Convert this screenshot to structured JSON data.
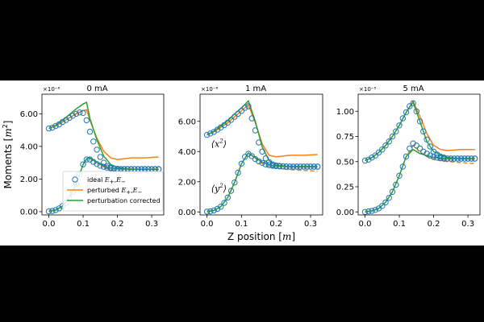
{
  "figure": {
    "ylabel_main": "Moments [",
    "ylabel_unit": "m",
    "ylabel_exp": "2",
    "ylabel_close": "]",
    "xlabel_main": "Z position [",
    "xlabel_unit": "m",
    "xlabel_close": "]"
  },
  "legend": {
    "ideal_label": "ideal E+,E−",
    "perturbed_label": "perturbed E+,E−",
    "corrected_label": "perturbation corrected"
  },
  "colors": {
    "ideal": "#1f77b4",
    "perturbed": "#ff7f0e",
    "corrected": "#2ca02c"
  },
  "chart_data": [
    {
      "type": "line",
      "title": "0 mA",
      "multiplier": "×10⁻⁶",
      "xlim": [
        -0.02,
        0.335
      ],
      "ylim": [
        -0.2,
        7.2
      ],
      "xticks": [
        0.0,
        0.1,
        0.2,
        0.3
      ],
      "xtick_labels": [
        "0.0",
        "0.1",
        "0.2",
        "0.3"
      ],
      "yticks": [
        0,
        2,
        4,
        6
      ],
      "ytick_labels": [
        "0.00",
        "2.00",
        "4.00",
        "6.00"
      ],
      "annotations": [],
      "series": [
        {
          "key": "ideal_x",
          "style": "markers",
          "x": [
            0,
            0.01,
            0.02,
            0.03,
            0.04,
            0.05,
            0.06,
            0.07,
            0.08,
            0.09,
            0.1,
            0.11,
            0.12,
            0.13,
            0.14,
            0.15,
            0.16,
            0.17,
            0.18,
            0.19,
            0.2,
            0.21,
            0.22,
            0.23,
            0.24,
            0.25,
            0.26,
            0.27,
            0.28,
            0.29,
            0.3,
            0.31,
            0.32
          ],
          "y": [
            5.1,
            5.15,
            5.25,
            5.35,
            5.5,
            5.62,
            5.75,
            5.88,
            6.0,
            6.08,
            6.05,
            5.6,
            4.9,
            4.3,
            3.8,
            3.35,
            3.0,
            2.8,
            2.7,
            2.65,
            2.62,
            2.6,
            2.6,
            2.6,
            2.6,
            2.6,
            2.6,
            2.6,
            2.6,
            2.6,
            2.6,
            2.6,
            2.6
          ]
        },
        {
          "key": "ideal_y",
          "style": "markers",
          "x": [
            0,
            0.01,
            0.02,
            0.03,
            0.04,
            0.05,
            0.06,
            0.07,
            0.08,
            0.09,
            0.1,
            0.11,
            0.12,
            0.13,
            0.14,
            0.15,
            0.16,
            0.17,
            0.18,
            0.19,
            0.2,
            0.21,
            0.22,
            0.23,
            0.24,
            0.25,
            0.26,
            0.27,
            0.28,
            0.29,
            0.3,
            0.31,
            0.32
          ],
          "y": [
            0.02,
            0.04,
            0.1,
            0.2,
            0.35,
            0.55,
            0.85,
            1.2,
            1.7,
            2.3,
            2.9,
            3.2,
            3.2,
            3.05,
            2.92,
            2.82,
            2.75,
            2.7,
            2.66,
            2.63,
            2.62,
            2.61,
            2.61,
            2.61,
            2.61,
            2.61,
            2.61,
            2.61,
            2.61,
            2.61,
            2.61,
            2.61,
            2.61
          ]
        },
        {
          "key": "perturbed_x",
          "style": "solid",
          "x": [
            0,
            0.02,
            0.04,
            0.06,
            0.08,
            0.1,
            0.11,
            0.12,
            0.14,
            0.16,
            0.18,
            0.2,
            0.22,
            0.24,
            0.28,
            0.32
          ],
          "y": [
            5.1,
            5.25,
            5.5,
            5.75,
            6.0,
            6.2,
            6.25,
            5.6,
            4.5,
            3.7,
            3.3,
            3.2,
            3.25,
            3.3,
            3.3,
            3.35
          ]
        },
        {
          "key": "perturbed_y",
          "style": "dashed",
          "x": [
            0,
            0.02,
            0.04,
            0.06,
            0.08,
            0.1,
            0.11,
            0.12,
            0.14,
            0.16,
            0.18,
            0.2,
            0.24,
            0.28,
            0.32
          ],
          "y": [
            0.02,
            0.1,
            0.35,
            0.85,
            1.7,
            2.9,
            3.2,
            3.25,
            3.0,
            2.75,
            2.6,
            2.5,
            2.45,
            2.4,
            2.3
          ]
        },
        {
          "key": "corrected_x",
          "style": "solid",
          "x": [
            0,
            0.02,
            0.04,
            0.06,
            0.08,
            0.1,
            0.11,
            0.12,
            0.14,
            0.16,
            0.18,
            0.2,
            0.24,
            0.28,
            0.32
          ],
          "y": [
            5.1,
            5.3,
            5.6,
            5.95,
            6.3,
            6.6,
            6.7,
            5.7,
            4.4,
            3.4,
            2.9,
            2.7,
            2.6,
            2.6,
            2.6
          ]
        },
        {
          "key": "corrected_y",
          "style": "solid",
          "x": [
            0,
            0.02,
            0.04,
            0.06,
            0.08,
            0.1,
            0.11,
            0.12,
            0.14,
            0.16,
            0.18,
            0.2,
            0.24,
            0.28,
            0.32
          ],
          "y": [
            0.02,
            0.1,
            0.35,
            0.85,
            1.7,
            2.9,
            3.25,
            3.3,
            3.0,
            2.8,
            2.68,
            2.62,
            2.6,
            2.6,
            2.6
          ]
        }
      ]
    },
    {
      "type": "line",
      "title": "1 mA",
      "multiplier": "×10⁻⁶",
      "xlim": [
        -0.02,
        0.335
      ],
      "ylim": [
        -0.2,
        7.8
      ],
      "xticks": [
        0.0,
        0.1,
        0.2,
        0.3
      ],
      "xtick_labels": [
        "0.0",
        "0.1",
        "0.2",
        "0.3"
      ],
      "yticks": [
        0,
        2,
        4,
        6
      ],
      "ytick_labels": [
        "0.00",
        "2.00",
        "4.00",
        "6.00"
      ],
      "annotations": [
        {
          "base": "⟨x",
          "exp": "2",
          "close": "⟩",
          "x": 0.012,
          "y": 4.3
        },
        {
          "base": "⟨y",
          "exp": "2",
          "close": "⟩",
          "x": 0.012,
          "y": 1.35
        }
      ],
      "series": [
        {
          "key": "ideal_x",
          "style": "markers",
          "x": [
            0,
            0.01,
            0.02,
            0.03,
            0.04,
            0.05,
            0.06,
            0.07,
            0.08,
            0.09,
            0.1,
            0.11,
            0.12,
            0.13,
            0.14,
            0.15,
            0.16,
            0.17,
            0.18,
            0.19,
            0.2,
            0.21,
            0.22,
            0.23,
            0.24,
            0.25,
            0.26,
            0.27,
            0.28,
            0.29,
            0.3,
            0.31,
            0.32
          ],
          "y": [
            5.1,
            5.2,
            5.3,
            5.45,
            5.6,
            5.75,
            5.92,
            6.1,
            6.3,
            6.5,
            6.7,
            6.9,
            7.0,
            6.2,
            5.4,
            4.6,
            4.0,
            3.55,
            3.3,
            3.15,
            3.08,
            3.05,
            3.02,
            3.01,
            3.0,
            3.0,
            3.0,
            3.0,
            3.0,
            3.0,
            3.0,
            3.0,
            3.0
          ]
        },
        {
          "key": "ideal_y",
          "style": "markers",
          "x": [
            0,
            0.01,
            0.02,
            0.03,
            0.04,
            0.05,
            0.06,
            0.07,
            0.08,
            0.09,
            0.1,
            0.11,
            0.12,
            0.13,
            0.14,
            0.15,
            0.16,
            0.17,
            0.18,
            0.19,
            0.2,
            0.21,
            0.22,
            0.23,
            0.24,
            0.25,
            0.26,
            0.27,
            0.28,
            0.29,
            0.3,
            0.31,
            0.32
          ],
          "y": [
            0.02,
            0.04,
            0.1,
            0.2,
            0.35,
            0.6,
            0.95,
            1.4,
            1.95,
            2.6,
            3.2,
            3.65,
            3.85,
            3.7,
            3.5,
            3.35,
            3.25,
            3.15,
            3.1,
            3.06,
            3.04,
            3.02,
            3.01,
            3.0,
            3.0,
            3.0,
            3.0,
            3.0,
            3.0,
            3.0,
            3.0,
            3.0,
            3.0
          ]
        },
        {
          "key": "perturbed_x",
          "style": "solid",
          "x": [
            0,
            0.02,
            0.04,
            0.06,
            0.08,
            0.1,
            0.12,
            0.14,
            0.16,
            0.18,
            0.2,
            0.22,
            0.24,
            0.28,
            0.32
          ],
          "y": [
            5.1,
            5.3,
            5.6,
            5.9,
            6.3,
            6.7,
            7.1,
            5.9,
            4.5,
            3.75,
            3.65,
            3.7,
            3.75,
            3.75,
            3.8
          ]
        },
        {
          "key": "perturbed_y",
          "style": "dashed",
          "x": [
            0,
            0.02,
            0.04,
            0.06,
            0.08,
            0.1,
            0.12,
            0.14,
            0.16,
            0.18,
            0.2,
            0.24,
            0.28,
            0.32
          ],
          "y": [
            0.02,
            0.1,
            0.35,
            0.95,
            1.95,
            3.2,
            3.9,
            3.55,
            3.2,
            3.0,
            2.9,
            2.8,
            2.75,
            2.7
          ]
        },
        {
          "key": "corrected_x",
          "style": "solid",
          "x": [
            0,
            0.02,
            0.04,
            0.06,
            0.08,
            0.1,
            0.12,
            0.14,
            0.16,
            0.18,
            0.2,
            0.24,
            0.28,
            0.32
          ],
          "y": [
            5.1,
            5.35,
            5.7,
            6.05,
            6.5,
            6.9,
            7.35,
            6.0,
            4.3,
            3.4,
            3.1,
            3.0,
            3.0,
            3.0
          ]
        },
        {
          "key": "corrected_y",
          "style": "solid",
          "x": [
            0,
            0.02,
            0.04,
            0.06,
            0.08,
            0.1,
            0.12,
            0.14,
            0.16,
            0.18,
            0.2,
            0.24,
            0.28,
            0.32
          ],
          "y": [
            0.02,
            0.1,
            0.35,
            0.95,
            1.95,
            3.2,
            3.9,
            3.6,
            3.3,
            3.12,
            3.05,
            3.0,
            3.0,
            3.0
          ]
        }
      ]
    },
    {
      "type": "line",
      "title": "5 mA",
      "multiplier": "×10⁻⁵",
      "xlim": [
        -0.02,
        0.335
      ],
      "ylim": [
        -0.03,
        1.17
      ],
      "xticks": [
        0.0,
        0.1,
        0.2,
        0.3
      ],
      "xtick_labels": [
        "0.0",
        "0.1",
        "0.2",
        "0.3"
      ],
      "yticks": [
        0,
        0.25,
        0.5,
        0.75,
        1.0
      ],
      "ytick_labels": [
        "0.00",
        "0.25",
        "0.50",
        "0.75",
        "1.00"
      ],
      "annotations": [],
      "series": [
        {
          "key": "ideal_x",
          "style": "markers",
          "x": [
            0,
            0.01,
            0.02,
            0.03,
            0.04,
            0.05,
            0.06,
            0.07,
            0.08,
            0.09,
            0.1,
            0.11,
            0.12,
            0.13,
            0.14,
            0.15,
            0.16,
            0.17,
            0.18,
            0.19,
            0.2,
            0.21,
            0.22,
            0.23,
            0.24,
            0.25,
            0.26,
            0.27,
            0.28,
            0.29,
            0.3,
            0.31,
            0.32
          ],
          "y": [
            0.51,
            0.52,
            0.54,
            0.56,
            0.59,
            0.62,
            0.66,
            0.7,
            0.75,
            0.8,
            0.86,
            0.93,
            0.99,
            1.05,
            1.08,
            1.0,
            0.9,
            0.8,
            0.72,
            0.65,
            0.6,
            0.57,
            0.55,
            0.54,
            0.53,
            0.53,
            0.53,
            0.53,
            0.53,
            0.53,
            0.53,
            0.53,
            0.53
          ]
        },
        {
          "key": "ideal_y",
          "style": "markers",
          "x": [
            0,
            0.01,
            0.02,
            0.03,
            0.04,
            0.05,
            0.06,
            0.07,
            0.08,
            0.09,
            0.1,
            0.11,
            0.12,
            0.13,
            0.14,
            0.15,
            0.16,
            0.17,
            0.18,
            0.19,
            0.2,
            0.21,
            0.22,
            0.23,
            0.24,
            0.25,
            0.26,
            0.27,
            0.28,
            0.29,
            0.3,
            0.31,
            0.32
          ],
          "y": [
            0.0,
            0.005,
            0.01,
            0.02,
            0.035,
            0.06,
            0.095,
            0.14,
            0.2,
            0.27,
            0.36,
            0.45,
            0.55,
            0.63,
            0.68,
            0.66,
            0.63,
            0.6,
            0.58,
            0.56,
            0.55,
            0.54,
            0.535,
            0.53,
            0.53,
            0.53,
            0.53,
            0.53,
            0.53,
            0.53,
            0.53,
            0.53,
            0.53
          ]
        },
        {
          "key": "perturbed_x",
          "style": "solid",
          "x": [
            0,
            0.02,
            0.04,
            0.06,
            0.08,
            0.1,
            0.12,
            0.14,
            0.16,
            0.18,
            0.2,
            0.22,
            0.24,
            0.28,
            0.32
          ],
          "y": [
            0.51,
            0.54,
            0.59,
            0.66,
            0.75,
            0.86,
            0.99,
            1.1,
            0.95,
            0.78,
            0.66,
            0.62,
            0.61,
            0.62,
            0.62
          ]
        },
        {
          "key": "perturbed_y",
          "style": "dashed",
          "x": [
            0,
            0.02,
            0.04,
            0.06,
            0.08,
            0.1,
            0.12,
            0.14,
            0.16,
            0.18,
            0.2,
            0.24,
            0.28,
            0.32
          ],
          "y": [
            0.0,
            0.01,
            0.035,
            0.095,
            0.2,
            0.36,
            0.55,
            0.66,
            0.6,
            0.55,
            0.52,
            0.5,
            0.49,
            0.48
          ]
        },
        {
          "key": "corrected_x",
          "style": "solid",
          "x": [
            0,
            0.02,
            0.04,
            0.06,
            0.08,
            0.1,
            0.12,
            0.14,
            0.16,
            0.18,
            0.2,
            0.24,
            0.28,
            0.32
          ],
          "y": [
            0.51,
            0.54,
            0.59,
            0.66,
            0.75,
            0.86,
            0.99,
            1.09,
            0.9,
            0.7,
            0.6,
            0.54,
            0.53,
            0.53
          ]
        },
        {
          "key": "corrected_y",
          "style": "solid",
          "x": [
            0,
            0.02,
            0.04,
            0.06,
            0.08,
            0.1,
            0.12,
            0.14,
            0.16,
            0.18,
            0.2,
            0.24,
            0.28,
            0.32
          ],
          "y": [
            0.0,
            0.01,
            0.035,
            0.095,
            0.2,
            0.36,
            0.55,
            0.62,
            0.58,
            0.56,
            0.54,
            0.53,
            0.53,
            0.53
          ]
        }
      ]
    }
  ]
}
